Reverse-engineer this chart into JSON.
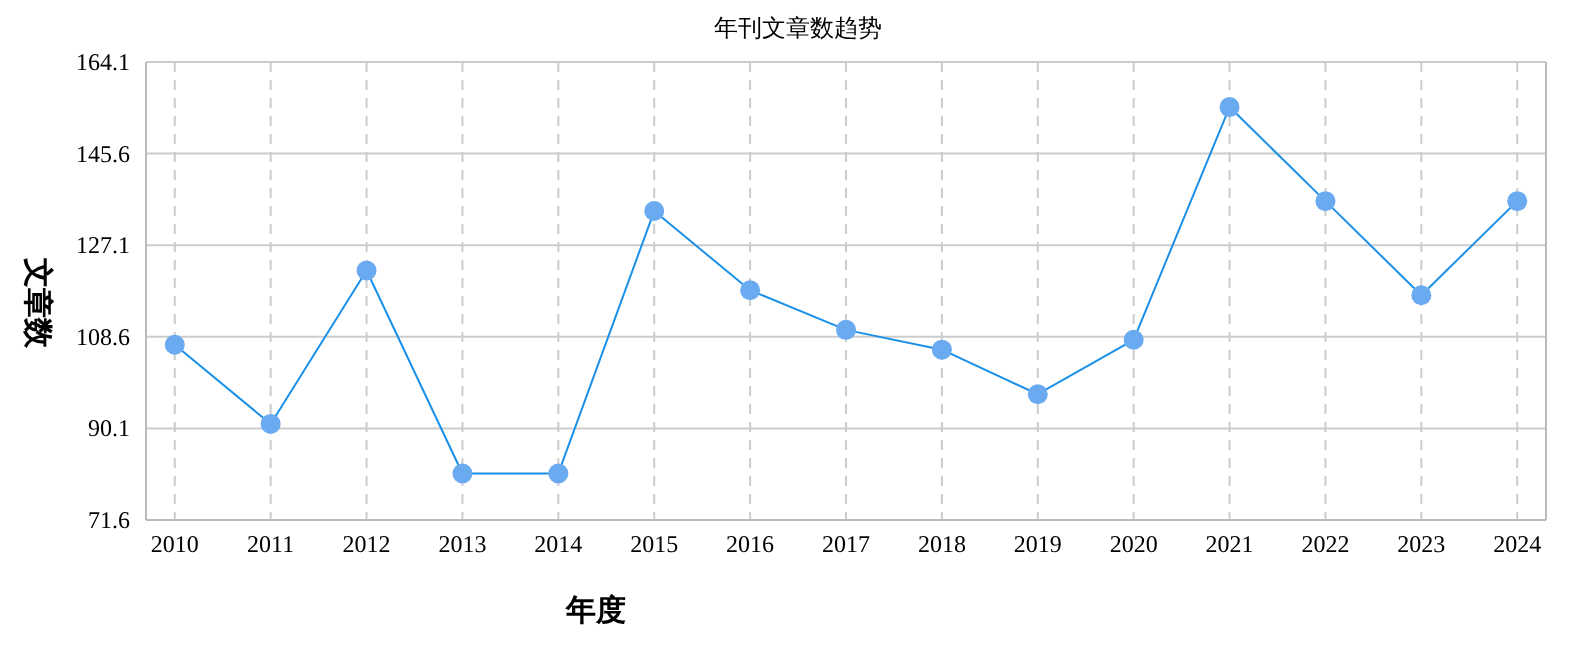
{
  "chart_data": {
    "type": "line",
    "title": "年刊文章数趋势",
    "xlabel": "年度",
    "ylabel": "文章数",
    "categories": [
      "2010",
      "2011",
      "2012",
      "2013",
      "2014",
      "2015",
      "2016",
      "2017",
      "2018",
      "2019",
      "2020",
      "2021",
      "2022",
      "2023",
      "2024"
    ],
    "series": [
      {
        "color": "#1a90e8",
        "values": [
          107,
          91,
          122,
          81,
          81,
          134,
          118,
          110,
          106,
          97,
          108,
          155,
          136,
          117,
          136
        ]
      }
    ],
    "ylim": [
      71.6,
      164.1
    ],
    "yticks": [
      71.6,
      90.1,
      108.6,
      127.1,
      145.6,
      164.1
    ],
    "grid": true,
    "marker": "circle",
    "line_style": "solid"
  }
}
